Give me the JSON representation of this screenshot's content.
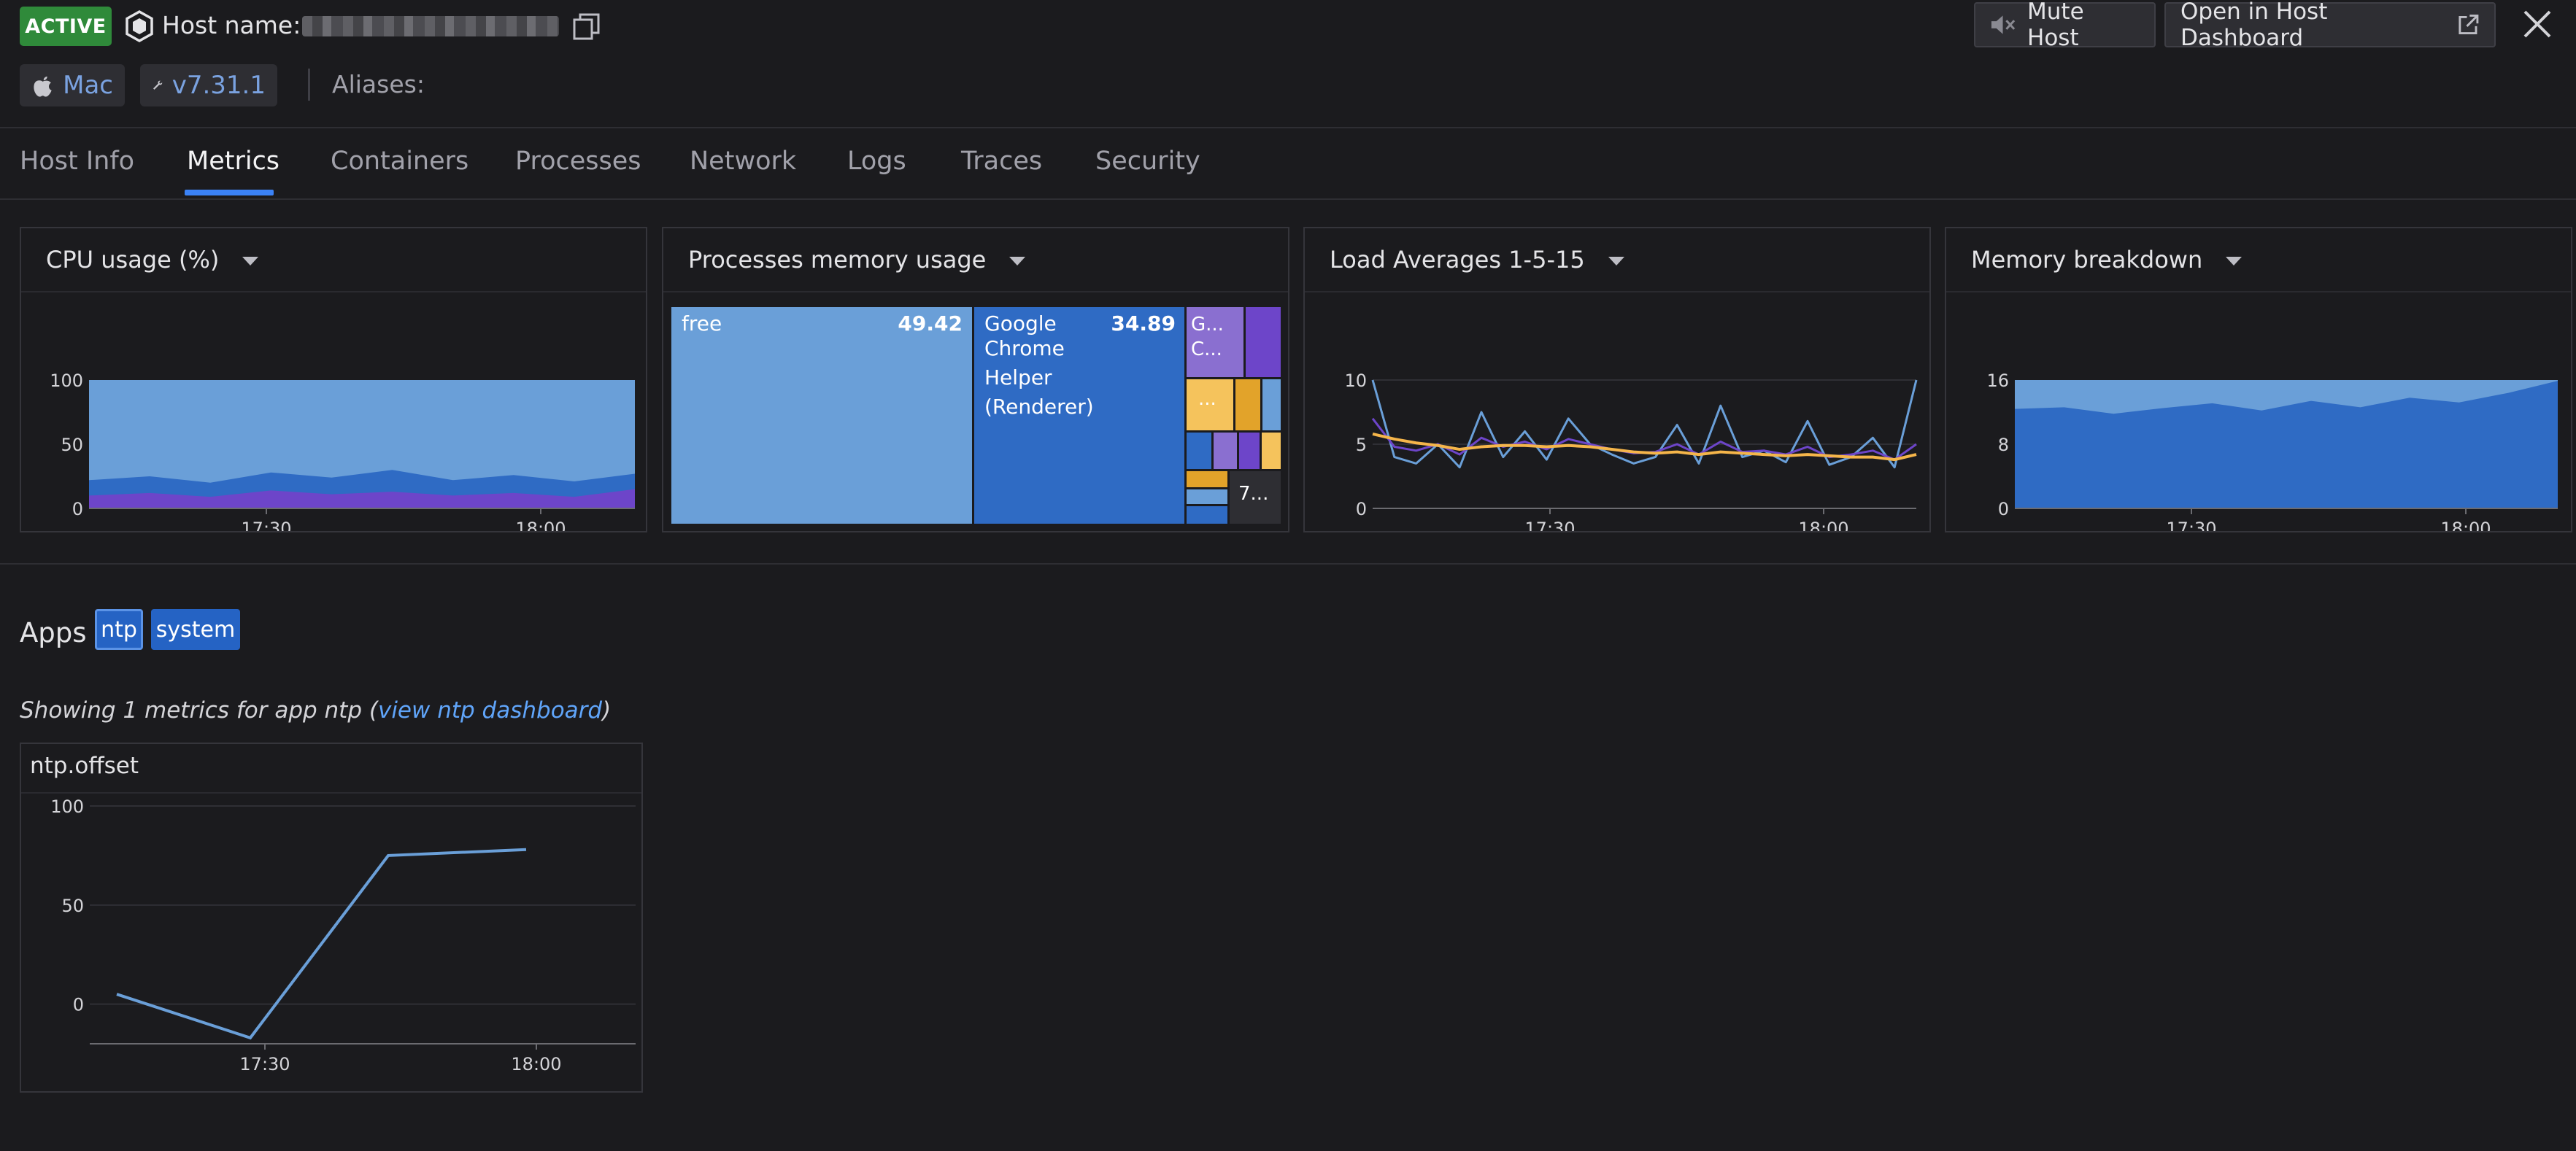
{
  "header": {
    "status_badge": "ACTIVE",
    "host_name_label": "Host name:",
    "host_name_value": "",
    "mute_button_label": "Mute Host",
    "open_dashboard_label": "Open in Host Dashboard"
  },
  "tags": {
    "os": "Mac",
    "agent_version": "v7.31.1",
    "aliases_label": "Aliases:"
  },
  "tabs": [
    {
      "label": "Host Info"
    },
    {
      "label": "Metrics",
      "active": true
    },
    {
      "label": "Containers"
    },
    {
      "label": "Processes"
    },
    {
      "label": "Network"
    },
    {
      "label": "Logs"
    },
    {
      "label": "Traces"
    },
    {
      "label": "Security"
    }
  ],
  "widgets": {
    "cpu": {
      "title": "CPU usage (%)"
    },
    "memory_processes": {
      "title": "Processes memory usage"
    },
    "load": {
      "title": "Load Averages 1-5-15"
    },
    "memory_breakdown": {
      "title": "Memory breakdown"
    }
  },
  "colors": {
    "accent": "#3b82f6",
    "active_badge": "#2f8a3a",
    "series_light_blue": "#6a9fd8",
    "series_blue": "#2f6bc4",
    "series_purple": "#6d45c9",
    "series_orange": "#f5b54a",
    "treemap_yellow": "#f5c35c",
    "treemap_gold": "#e2a32a"
  },
  "chart_data": [
    {
      "id": "cpu",
      "type": "area",
      "title": "CPU usage (%)",
      "x_ticks": [
        "17:30",
        "18:00"
      ],
      "y_ticks": [
        0,
        50,
        100
      ],
      "ylim": [
        0,
        100
      ],
      "series": [
        {
          "values": [
            100,
            100,
            100,
            100,
            100,
            100,
            100,
            100,
            100,
            100
          ]
        },
        {
          "values": [
            22,
            25,
            20,
            28,
            24,
            30,
            22,
            26,
            21,
            27
          ]
        },
        {
          "values": [
            10,
            12,
            9,
            14,
            11,
            13,
            10,
            12,
            9,
            15
          ]
        }
      ]
    },
    {
      "id": "memory_processes",
      "type": "treemap",
      "title": "Processes memory usage",
      "items": [
        {
          "label": "free",
          "value": 49.42
        },
        {
          "label": "Google Chrome Helper (Renderer)",
          "value": 34.89
        },
        {
          "label": "G... C..."
        },
        {
          "label": "..."
        },
        {
          "label": "7..."
        }
      ]
    },
    {
      "id": "load",
      "type": "line",
      "title": "Load Averages 1-5-15",
      "x_ticks": [
        "17:30",
        "18:00"
      ],
      "y_ticks": [
        0,
        5,
        10
      ],
      "ylim": [
        0,
        10
      ],
      "series": [
        {
          "values": [
            10,
            4,
            3.5,
            5,
            3.2,
            7.5,
            4,
            6,
            3.8,
            7,
            5,
            4.2,
            3.5,
            4,
            6.5,
            3.5,
            8,
            4,
            4.5,
            3.6,
            6.8,
            3.4,
            4,
            5.5,
            3.2,
            10
          ]
        },
        {
          "values": [
            7,
            4.8,
            4.5,
            5,
            4.2,
            5.5,
            4.8,
            5.2,
            4.6,
            5.4,
            5,
            4.6,
            4.3,
            4.4,
            5,
            4.2,
            5.2,
            4.4,
            4.5,
            4.2,
            4.8,
            4,
            4.2,
            4.5,
            3.8,
            5
          ]
        },
        {
          "values": [
            5.8,
            5.4,
            5.1,
            4.9,
            4.6,
            4.8,
            4.9,
            4.9,
            4.8,
            4.9,
            4.8,
            4.6,
            4.4,
            4.3,
            4.4,
            4.2,
            4.4,
            4.3,
            4.2,
            4.1,
            4.2,
            4.1,
            4,
            4,
            3.8,
            4.2
          ]
        }
      ]
    },
    {
      "id": "memory_breakdown",
      "type": "area",
      "title": "Memory breakdown",
      "x_ticks": [
        "17:30",
        "18:00"
      ],
      "y_ticks": [
        0,
        8,
        16
      ],
      "ylim": [
        0,
        16
      ],
      "series": [
        {
          "values": [
            16,
            16,
            16,
            16,
            16,
            16,
            16,
            16,
            16,
            16,
            16,
            16
          ]
        },
        {
          "values": [
            12.4,
            12.6,
            11.8,
            12.5,
            13.1,
            12.2,
            13.4,
            12.6,
            13.8,
            13.2,
            14.4,
            15.9
          ]
        }
      ]
    },
    {
      "id": "ntp_offset",
      "type": "line",
      "title": "ntp.offset",
      "x_ticks": [
        "17:30",
        "18:00"
      ],
      "y_ticks": [
        0,
        50,
        100
      ],
      "ylim": [
        -20,
        100
      ],
      "series": [
        {
          "values": [
            5,
            -17,
            75,
            78
          ]
        }
      ]
    }
  ],
  "apps": {
    "label": "Apps",
    "tags": [
      "ntp",
      "system"
    ],
    "showing_prefix": "Showing 1 metrics for app ntp (",
    "showing_link": "view ntp dashboard",
    "showing_suffix": ")",
    "metric_title": "ntp.offset"
  }
}
